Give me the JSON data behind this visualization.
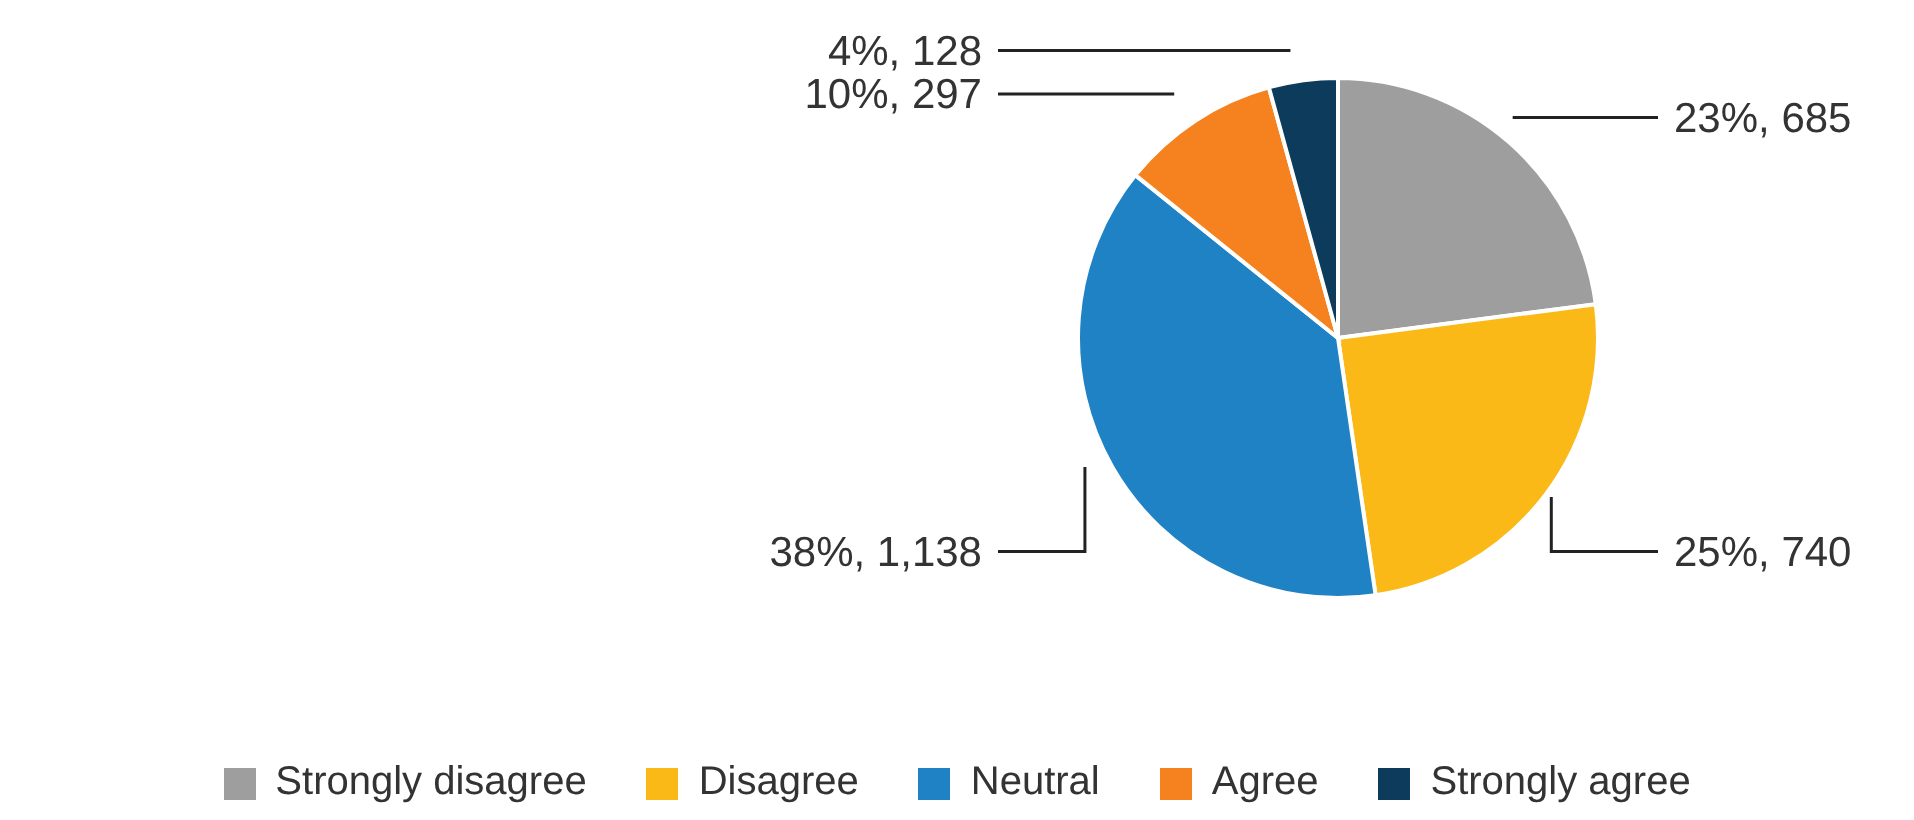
{
  "chart_data": {
    "type": "pie",
    "categories": [
      "Strongly disagree",
      "Disagree",
      "Neutral",
      "Agree",
      "Strongly agree"
    ],
    "values": [
      685,
      740,
      1138,
      297,
      128
    ],
    "colors": [
      "#9e9e9e",
      "#fbb917",
      "#1f82c4",
      "#f5821f",
      "#0c3b5b"
    ],
    "value_labels": [
      "23%, 685",
      "25%, 740",
      "38%, 1,138",
      "10%, 297",
      "4%, 128"
    ],
    "legend": "bottom"
  }
}
